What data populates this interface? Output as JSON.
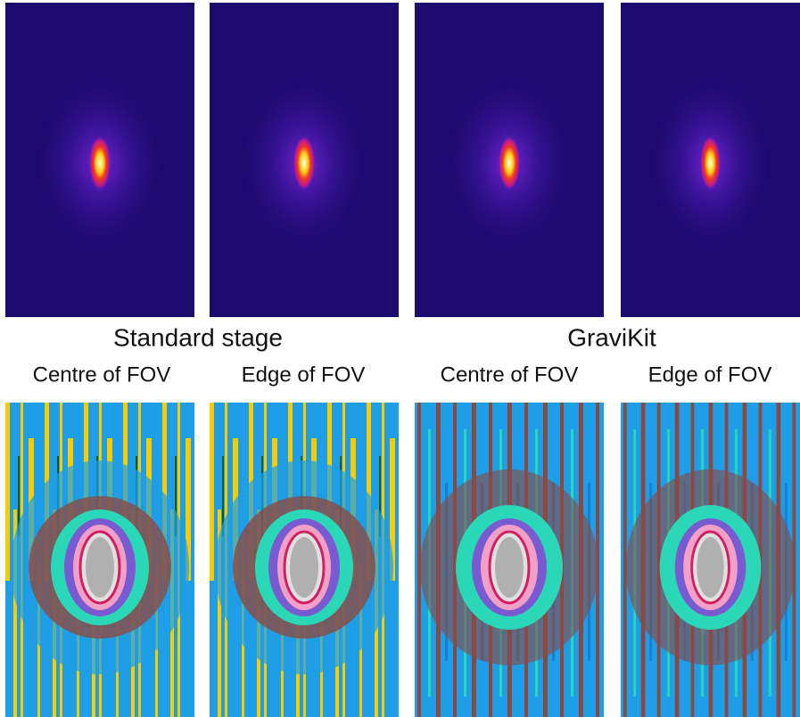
{
  "panels": [
    {
      "group": "Standard stage",
      "columns": [
        "Centre of FOV",
        "Edge of FOV"
      ]
    },
    {
      "group": "GraviKit",
      "columns": [
        "Centre of FOV",
        "Edge of FOV"
      ]
    }
  ]
}
